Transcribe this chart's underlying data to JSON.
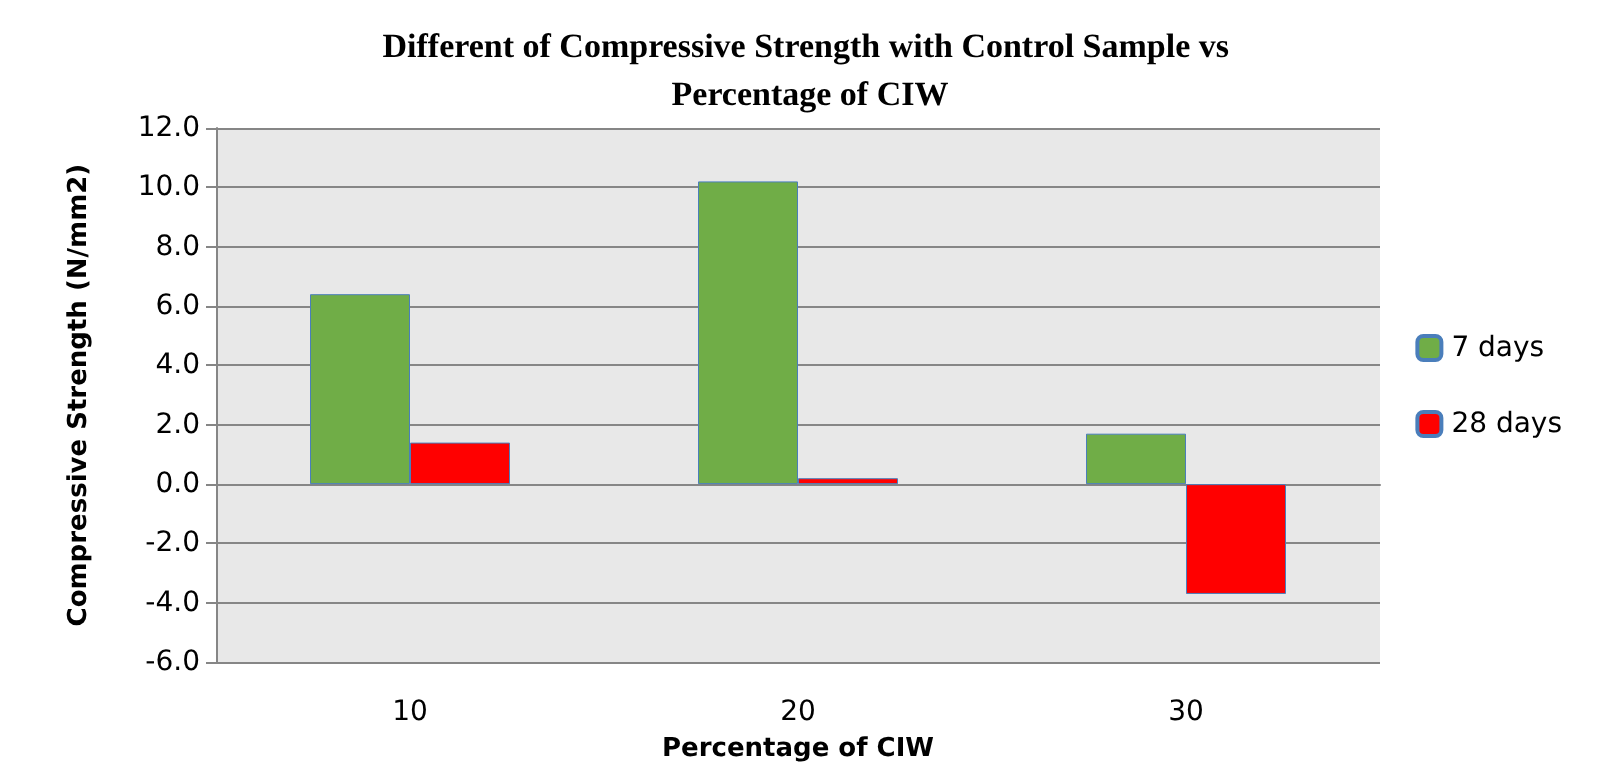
{
  "chart_data": {
    "type": "bar",
    "title": "Different of Compressive Strength with Control Sample vs Percentage of CIW",
    "xlabel": "Percentage of CIW",
    "ylabel": "Compressive Strength (N/mm2)",
    "categories": [
      "10",
      "20",
      "30"
    ],
    "series": [
      {
        "name": "7 days",
        "color": "#70ad47",
        "values": [
          6.4,
          10.2,
          1.7
        ]
      },
      {
        "name": "28 days",
        "color": "#ff0000",
        "values": [
          1.4,
          0.2,
          -3.7
        ]
      }
    ],
    "ylim": [
      -6,
      12
    ],
    "yticks": [
      {
        "value": -6,
        "label": "-6.0"
      },
      {
        "value": -4,
        "label": "-4.0"
      },
      {
        "value": -2,
        "label": "-2.0"
      },
      {
        "value": 0,
        "label": "0.0"
      },
      {
        "value": 2,
        "label": "2.0"
      },
      {
        "value": 4,
        "label": "4.0"
      },
      {
        "value": 6,
        "label": "6.0"
      },
      {
        "value": 8,
        "label": "8.0"
      },
      {
        "value": 10,
        "label": "10.0"
      },
      {
        "value": 12,
        "label": "12.0"
      }
    ],
    "grid": "y",
    "legend": "right"
  }
}
